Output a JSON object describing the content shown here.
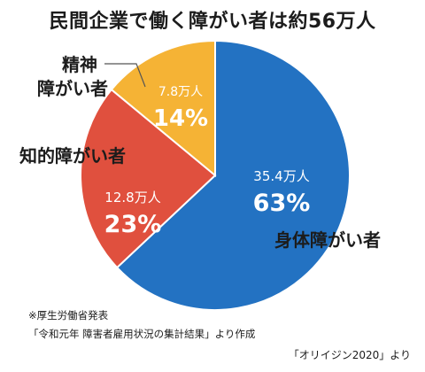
{
  "chart_data": {
    "type": "pie",
    "title": "民間企業で働く障がい者は約56万人",
    "slices": [
      {
        "name": "身体障がい者",
        "count_label": "35.4万人",
        "percent": 63,
        "percent_label": "63%",
        "color": "#2372c2"
      },
      {
        "name": "知的障がい者",
        "count_label": "12.8万人",
        "percent": 23,
        "percent_label": "23%",
        "color": "#e0503e"
      },
      {
        "name": "精神障がい者",
        "name_lines": [
          "精神",
          "障がい者"
        ],
        "count_label": "7.8万人",
        "percent": 14,
        "percent_label": "14%",
        "color": "#f5b335"
      }
    ]
  },
  "notes": {
    "line1": "※厚生労働省発表",
    "line2": "「令和元年 障害者雇用状況の集計結果」より作成"
  },
  "source": "「オリイジン2020」より"
}
